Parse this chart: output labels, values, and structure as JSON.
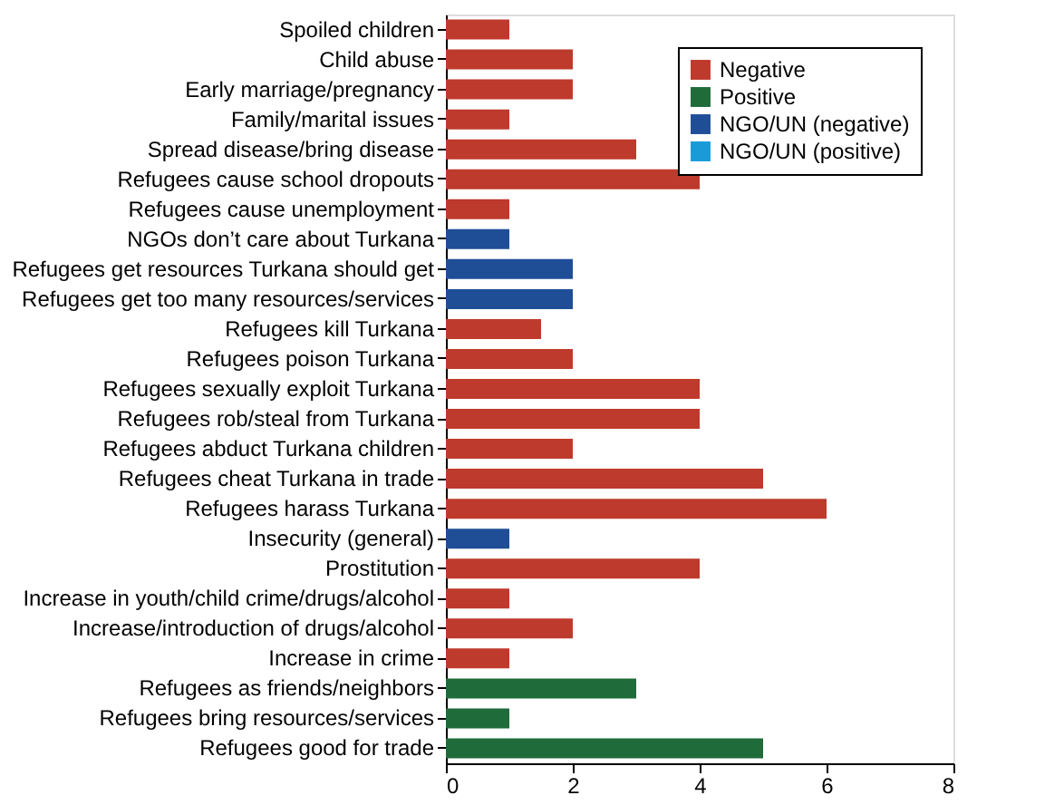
{
  "chart_data": {
    "type": "bar",
    "orientation": "horizontal",
    "categories": [
      "Spoiled children",
      "Child abuse",
      "Early marriage/pregnancy",
      "Family/marital issues",
      "Spread disease/bring disease",
      "Refugees cause school dropouts",
      "Refugees cause unemployment",
      "NGOs don’t care about Turkana",
      "Refugees get resources Turkana should get",
      "Refugees get too many resources/services",
      "Refugees kill Turkana",
      "Refugees poison Turkana",
      "Refugees sexually exploit Turkana",
      "Refugees rob/steal from Turkana",
      "Refugees abduct Turkana children",
      "Refugees cheat Turkana in trade",
      "Refugees harass Turkana",
      "Insecurity (general)",
      "Prostitution",
      "Increase in youth/child crime/drugs/alcohol",
      "Increase/introduction of drugs/alcohol",
      "Increase in crime",
      "Refugees as friends/neighbors",
      "Refugees bring resources/services",
      "Refugees good for trade"
    ],
    "series": [
      {
        "name": "Negative",
        "color": "#be3a2c",
        "values": [
          1,
          2,
          2,
          1,
          3,
          4,
          1,
          null,
          null,
          null,
          1.5,
          2,
          4,
          4,
          2,
          5,
          6,
          null,
          4,
          1,
          2,
          1,
          null,
          null,
          null
        ]
      },
      {
        "name": "Positive",
        "color": "#1f6b3a",
        "values": [
          null,
          null,
          null,
          null,
          null,
          null,
          null,
          null,
          null,
          null,
          null,
          null,
          null,
          null,
          null,
          null,
          null,
          null,
          null,
          null,
          null,
          null,
          3,
          1,
          5
        ]
      },
      {
        "name": "NGO/UN (negative)",
        "color": "#1f4e96",
        "values": [
          null,
          null,
          null,
          null,
          null,
          null,
          null,
          1,
          2,
          2,
          null,
          null,
          null,
          null,
          null,
          null,
          null,
          1,
          null,
          null,
          null,
          null,
          null,
          null,
          null
        ]
      },
      {
        "name": "NGO/UN (positive)",
        "color": "#1a9ad6",
        "values": [
          null,
          null,
          null,
          null,
          null,
          null,
          null,
          null,
          null,
          null,
          null,
          null,
          null,
          null,
          null,
          null,
          null,
          null,
          null,
          null,
          null,
          null,
          null,
          null,
          null
        ]
      }
    ],
    "xlim": [
      0,
      8
    ],
    "xticks": [
      0,
      2,
      4,
      6,
      8
    ],
    "grid": false,
    "legend": "top right"
  }
}
